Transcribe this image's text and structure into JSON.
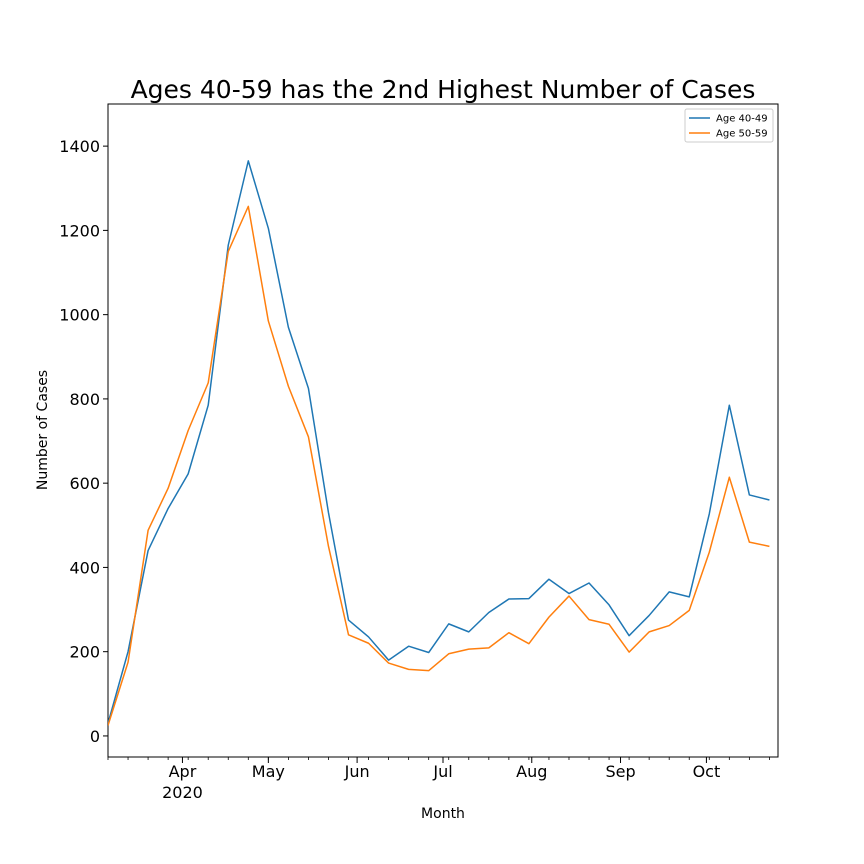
{
  "chart_data": {
    "type": "line",
    "title": "Ages 40-59 has the 2nd Highest Number of Cases",
    "xlabel": "Month",
    "ylabel": "Number of Cases",
    "ylim": [
      -50,
      1500
    ],
    "yticks": [
      0,
      200,
      400,
      600,
      800,
      1000,
      1200,
      1400
    ],
    "xlim": [
      "2020-03-06",
      "2020-10-26"
    ],
    "xticks": [
      {
        "date": "2020-04-01",
        "label": "Apr",
        "sublabel": "2020"
      },
      {
        "date": "2020-05-01",
        "label": "May",
        "sublabel": ""
      },
      {
        "date": "2020-06-01",
        "label": "Jun",
        "sublabel": ""
      },
      {
        "date": "2020-07-01",
        "label": "Jul",
        "sublabel": ""
      },
      {
        "date": "2020-08-01",
        "label": "Aug",
        "sublabel": ""
      },
      {
        "date": "2020-09-01",
        "label": "Sep",
        "sublabel": ""
      },
      {
        "date": "2020-10-01",
        "label": "Oct",
        "sublabel": ""
      }
    ],
    "x": [
      "2020-03-06",
      "2020-03-13",
      "2020-03-20",
      "2020-03-27",
      "2020-04-03",
      "2020-04-10",
      "2020-04-17",
      "2020-04-24",
      "2020-05-01",
      "2020-05-08",
      "2020-05-15",
      "2020-05-22",
      "2020-05-29",
      "2020-06-05",
      "2020-06-12",
      "2020-06-19",
      "2020-06-26",
      "2020-07-03",
      "2020-07-10",
      "2020-07-17",
      "2020-07-24",
      "2020-07-31",
      "2020-08-07",
      "2020-08-14",
      "2020-08-21",
      "2020-08-28",
      "2020-09-04",
      "2020-09-11",
      "2020-09-18",
      "2020-09-25",
      "2020-10-02",
      "2020-10-09",
      "2020-10-16",
      "2020-10-23"
    ],
    "legend_position": "upper right",
    "grid": false,
    "series": [
      {
        "name": "Age 40-49",
        "color": "#1f77b4",
        "values": [
          30,
          200,
          440,
          540,
          622,
          785,
          1165,
          1365,
          1205,
          970,
          825,
          530,
          275,
          235,
          180,
          213,
          198,
          266,
          247,
          293,
          325,
          326,
          372,
          338,
          363,
          311,
          238,
          286,
          342,
          330,
          527,
          785,
          572,
          560
        ]
      },
      {
        "name": "Age 50-59",
        "color": "#ff7f0e",
        "values": [
          25,
          175,
          488,
          588,
          725,
          838,
          1150,
          1257,
          985,
          830,
          710,
          450,
          240,
          220,
          173,
          158,
          155,
          195,
          206,
          209,
          245,
          219,
          282,
          332,
          276,
          265,
          199,
          247,
          262,
          298,
          436,
          614,
          460,
          450
        ]
      }
    ]
  }
}
